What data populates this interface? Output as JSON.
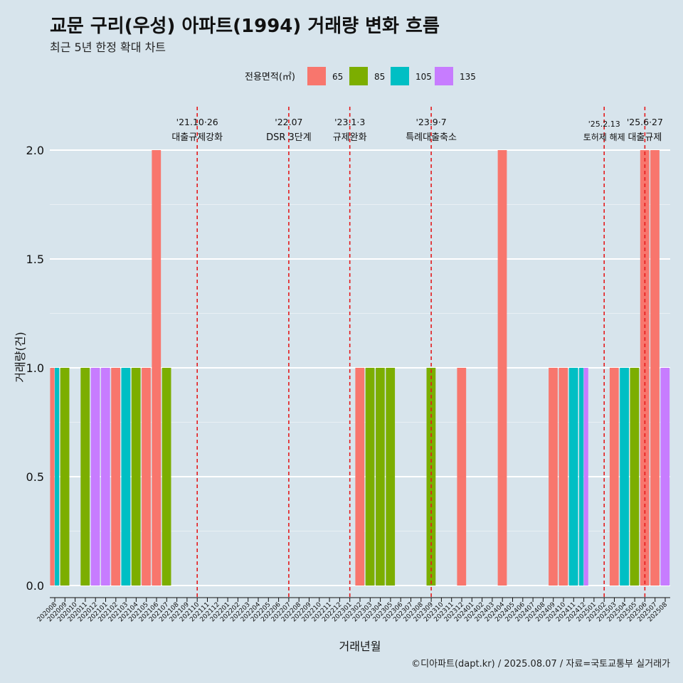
{
  "chart_data": {
    "type": "bar",
    "title": "교문 구리(우성) 아파트(1994) 거래량 변화 흐름",
    "subtitle": "최근 5년 한정 확대 차트",
    "xlabel": "거래년월",
    "ylabel": "거래량(건)",
    "ylim": [
      0,
      2
    ],
    "yticks": [
      "0.0",
      "0.5",
      "1.0",
      "1.5",
      "2.0"
    ],
    "legend": {
      "title": "전용면적(㎡)",
      "position": "top"
    },
    "categories": [
      "202008",
      "202009",
      "202010",
      "202011",
      "202012",
      "202101",
      "202102",
      "202103",
      "202104",
      "202105",
      "202106",
      "202107",
      "202108",
      "202109",
      "202110",
      "202111",
      "202112",
      "202201",
      "202202",
      "202203",
      "202204",
      "202205",
      "202206",
      "202207",
      "202208",
      "202209",
      "202210",
      "202211",
      "202212",
      "202301",
      "202302",
      "202303",
      "202304",
      "202305",
      "202306",
      "202307",
      "202308",
      "202309",
      "202310",
      "202311",
      "202312",
      "202401",
      "202402",
      "202403",
      "202404",
      "202405",
      "202406",
      "202407",
      "202408",
      "202409",
      "202410",
      "202411",
      "202412",
      "202501",
      "202502",
      "202503",
      "202504",
      "202505",
      "202506",
      "202507",
      "202508"
    ],
    "series": [
      {
        "name": "65",
        "color": "#F8766D",
        "values": [
          1,
          0,
          0,
          0,
          0,
          0,
          1,
          0,
          0,
          1,
          2,
          0,
          0,
          0,
          0,
          0,
          0,
          0,
          0,
          0,
          0,
          0,
          0,
          0,
          0,
          0,
          0,
          0,
          0,
          0,
          1,
          0,
          0,
          0,
          0,
          0,
          0,
          0,
          0,
          0,
          1,
          0,
          0,
          0,
          2,
          0,
          0,
          0,
          0,
          1,
          1,
          0,
          0,
          0,
          0,
          1,
          0,
          0,
          2,
          2,
          0
        ]
      },
      {
        "name": "85",
        "color": "#7CAE00",
        "values": [
          0,
          1,
          0,
          1,
          0,
          0,
          0,
          0,
          1,
          0,
          0,
          1,
          0,
          0,
          0,
          0,
          0,
          0,
          0,
          0,
          0,
          0,
          0,
          0,
          0,
          0,
          0,
          0,
          0,
          0,
          0,
          1,
          1,
          1,
          0,
          0,
          0,
          1,
          0,
          0,
          0,
          0,
          0,
          0,
          0,
          0,
          0,
          0,
          0,
          0,
          0,
          0,
          0,
          0,
          0,
          0,
          0,
          1,
          0,
          0,
          0
        ]
      },
      {
        "name": "105",
        "color": "#00BFC4",
        "values": [
          1,
          0,
          0,
          0,
          0,
          0,
          0,
          1,
          0,
          0,
          0,
          0,
          0,
          0,
          0,
          0,
          0,
          0,
          0,
          0,
          0,
          0,
          0,
          0,
          0,
          0,
          0,
          0,
          0,
          0,
          0,
          0,
          0,
          0,
          0,
          0,
          0,
          0,
          0,
          0,
          0,
          0,
          0,
          0,
          0,
          0,
          0,
          0,
          0,
          0,
          0,
          1,
          1,
          0,
          0,
          0,
          1,
          0,
          0,
          0,
          0
        ]
      },
      {
        "name": "135",
        "color": "#C77CFF",
        "values": [
          0,
          0,
          0,
          0,
          1,
          1,
          0,
          0,
          0,
          0,
          0,
          0,
          0,
          0,
          0,
          0,
          0,
          0,
          0,
          0,
          0,
          0,
          0,
          0,
          0,
          0,
          0,
          0,
          0,
          0,
          0,
          0,
          0,
          0,
          0,
          0,
          0,
          0,
          0,
          0,
          0,
          0,
          0,
          0,
          0,
          0,
          0,
          0,
          0,
          0,
          0,
          0,
          1,
          0,
          0,
          0,
          0,
          0,
          0,
          0,
          1
        ]
      }
    ],
    "events": [
      {
        "month": "202110",
        "date": "'21.10·26",
        "label": "대출규제강화"
      },
      {
        "month": "202207",
        "date": "'22.07",
        "label": "DSR 3단계"
      },
      {
        "month": "202301",
        "date": "'23.1·3",
        "label": "규제완화"
      },
      {
        "month": "202309",
        "date": "'23.9·7",
        "label": "특례대출축소"
      },
      {
        "month": "202502",
        "date": "'25.2.13",
        "label": "토허제 해제"
      },
      {
        "month": "202506",
        "date": "'25.6·27",
        "label": "대출규제"
      }
    ],
    "event_line_color": "#E41A1C"
  },
  "caption": "©디아파트(dapt.kr) / 2025.08.07 / 자료=국토교통부 실거래가"
}
